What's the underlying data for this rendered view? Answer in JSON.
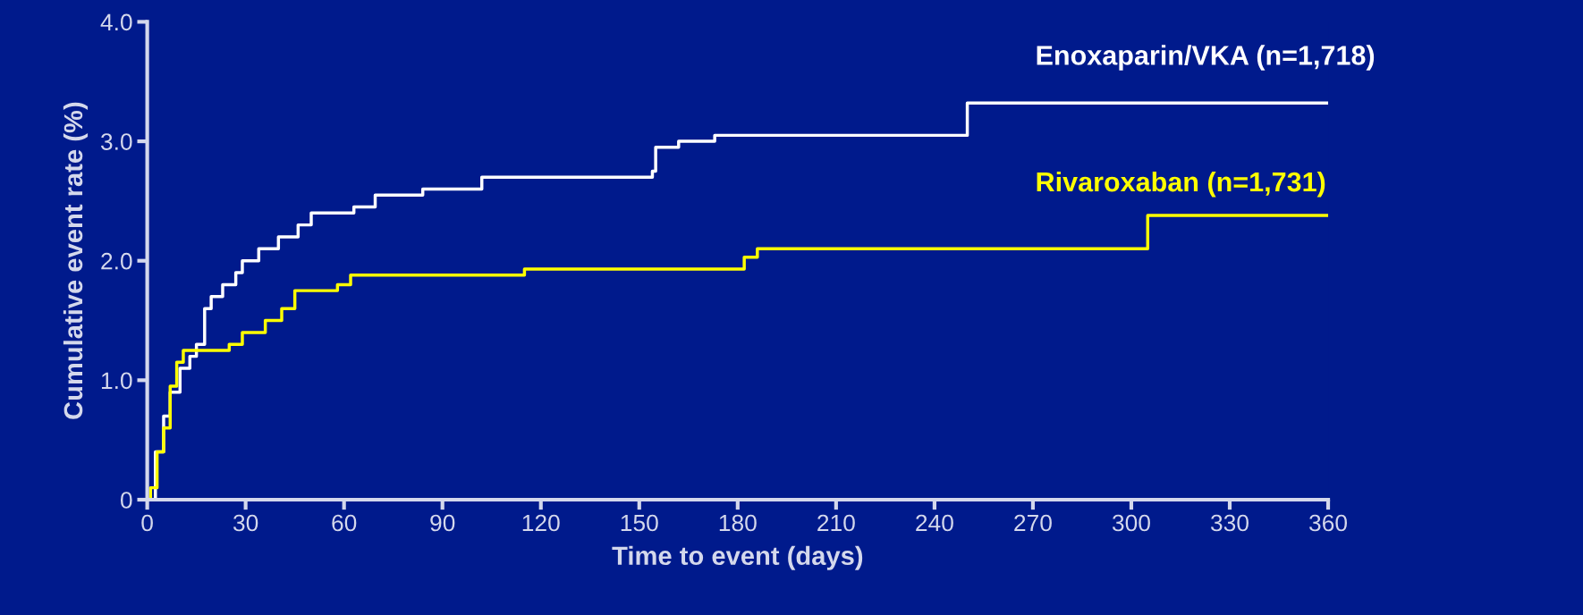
{
  "chart_data": {
    "type": "step",
    "xlabel": "Time to event (days)",
    "ylabel": "Cumulative event rate (%)",
    "xlim": [
      0,
      360
    ],
    "xticks": [
      0,
      30,
      60,
      90,
      120,
      150,
      180,
      210,
      240,
      270,
      300,
      330,
      360
    ],
    "ylim": [
      0,
      4
    ],
    "yticks": [
      0,
      {
        "value": 1,
        "label": "1.0"
      },
      {
        "value": 2,
        "label": "2.0"
      },
      {
        "value": 3,
        "label": "3.0"
      },
      {
        "value": 4,
        "label": "4.0"
      }
    ],
    "grid": false,
    "legend": false,
    "series": [
      {
        "name": "Enoxaparin/VKA (n=1,718)",
        "color": "#ffffff",
        "x": [
          0,
          2.5,
          5,
          7,
          10,
          13,
          15,
          17.5,
          19.5,
          23,
          27,
          29,
          34,
          40,
          46,
          50,
          63,
          69.5,
          84,
          102,
          154,
          155,
          162,
          173,
          250,
          360
        ],
        "values": [
          0,
          0.4,
          0.7,
          0.9,
          1.1,
          1.2,
          1.3,
          1.6,
          1.7,
          1.8,
          1.9,
          2.0,
          2.1,
          2.2,
          2.3,
          2.4,
          2.45,
          2.55,
          2.6,
          2.7,
          2.75,
          2.95,
          3.0,
          3.05,
          3.32,
          3.32
        ]
      },
      {
        "name": "Rivaroxaban (n=1,731)",
        "color": "#ffff00",
        "x": [
          0,
          1,
          3,
          5,
          7,
          9,
          11,
          25,
          29,
          36,
          41,
          45,
          58,
          62,
          115,
          182,
          186,
          305,
          360
        ],
        "values": [
          0,
          0.1,
          0.4,
          0.6,
          0.95,
          1.15,
          1.25,
          1.3,
          1.4,
          1.5,
          1.6,
          1.75,
          1.8,
          1.88,
          1.93,
          2.03,
          2.1,
          2.38,
          2.38
        ]
      }
    ]
  }
}
